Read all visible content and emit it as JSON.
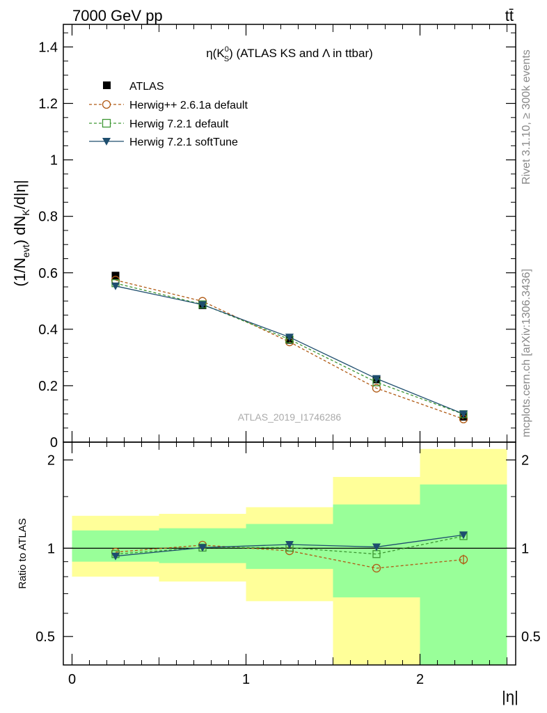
{
  "header": {
    "left": "7000 GeV pp",
    "right": "tt̄"
  },
  "side_labels": {
    "rivet": "Rivet 3.1.10, ≥ 300k events",
    "mcplots": "mcplots.cern.ch [arXiv:1306.3436]"
  },
  "colors": {
    "atlas": "#000000",
    "herwigpp": "#b05a14",
    "herwig721": "#3c9632",
    "softtune": "#1e4e6e",
    "band_outer": "#ffff99",
    "band_inner": "#99ff99",
    "watermark": "#aaaaaa"
  },
  "chart_data": [
    {
      "type": "line",
      "title": "η(K⁰_S) (ATLAS KS and Λ in ttbar)",
      "title_parts": {
        "eta": "η(K",
        "sup": "0",
        "sub": "S",
        "rest": ") (ATLAS KS and Λ in ttbar)"
      },
      "ylabel": "(1/N_evt) dN_K/d|η|",
      "ylabel_parts": {
        "a": "(1/N",
        "sub1": "evt",
        "b": ") dN",
        "sub2": "K",
        "c": "/d|η|"
      },
      "watermark": "ATLAS_2019_I1746286",
      "xlim": [
        -0.05,
        2.55
      ],
      "ylim": [
        0,
        1.48
      ],
      "yticks": [
        0,
        0.2,
        0.4,
        0.6,
        0.8,
        1,
        1.2,
        1.4
      ],
      "ytick_labels": [
        "0",
        "0.2",
        "0.4",
        "0.6",
        "0.8",
        "1",
        "1.2",
        "1.4"
      ],
      "x": [
        0.25,
        0.75,
        1.25,
        1.75,
        2.25
      ],
      "series": [
        {
          "name": "ATLAS",
          "marker": "filled-square",
          "values": [
            0.59,
            0.485,
            0.362,
            0.222,
            0.09
          ]
        },
        {
          "name": "Herwig++ 2.6.1a default",
          "marker": "open-circle",
          "line": "dashed",
          "values": [
            0.574,
            0.499,
            0.355,
            0.191,
            0.082
          ]
        },
        {
          "name": "Herwig 7.2.1 default",
          "marker": "open-square",
          "line": "dashed",
          "values": [
            0.563,
            0.488,
            0.364,
            0.212,
            0.099
          ]
        },
        {
          "name": "Herwig 7.2.1 softTune",
          "marker": "filled-triangle-down",
          "line": "solid",
          "values": [
            0.553,
            0.487,
            0.372,
            0.225,
            0.1
          ]
        }
      ],
      "legend": [
        "ATLAS",
        "Herwig++ 2.6.1a default",
        "Herwig 7.2.1 default",
        "Herwig 7.2.1 softTune"
      ]
    },
    {
      "type": "line",
      "ylabel": "Ratio to ATLAS",
      "xlabel": "|η|",
      "yscale": "log",
      "xlim": [
        -0.05,
        2.55
      ],
      "ylim": [
        0.4,
        2.3
      ],
      "yticks": [
        0.5,
        1,
        2
      ],
      "ytick_labels": [
        "0.5",
        "1",
        "2"
      ],
      "xticks": [
        0,
        1,
        2
      ],
      "xtick_labels": [
        "0",
        "1",
        "2"
      ],
      "bins": [
        [
          0,
          0.5
        ],
        [
          0.5,
          1.0
        ],
        [
          1.0,
          1.5
        ],
        [
          1.5,
          2.0
        ],
        [
          2.0,
          2.5
        ]
      ],
      "band_outer": [
        [
          0.8,
          1.29
        ],
        [
          0.77,
          1.31
        ],
        [
          0.66,
          1.38
        ],
        [
          0.4,
          1.75
        ],
        [
          0.4,
          2.18
        ]
      ],
      "band_inner": [
        [
          0.9,
          1.15
        ],
        [
          0.89,
          1.17
        ],
        [
          0.85,
          1.21
        ],
        [
          0.68,
          1.41
        ],
        [
          0.4,
          1.65
        ]
      ],
      "x": [
        0.25,
        0.75,
        1.25,
        1.75,
        2.25
      ],
      "series": [
        {
          "name": "Herwig++ 2.6.1a default",
          "values": [
            0.97,
            1.025,
            0.98,
            0.855,
            0.915
          ],
          "errors": [
            0,
            0,
            0,
            0,
            0.035
          ]
        },
        {
          "name": "Herwig 7.2.1 default",
          "values": [
            0.955,
            1.005,
            1.005,
            0.955,
            1.1
          ]
        },
        {
          "name": "Herwig 7.2.1 softTune",
          "values": [
            0.94,
            1.005,
            1.03,
            1.01,
            1.11
          ]
        }
      ]
    }
  ]
}
